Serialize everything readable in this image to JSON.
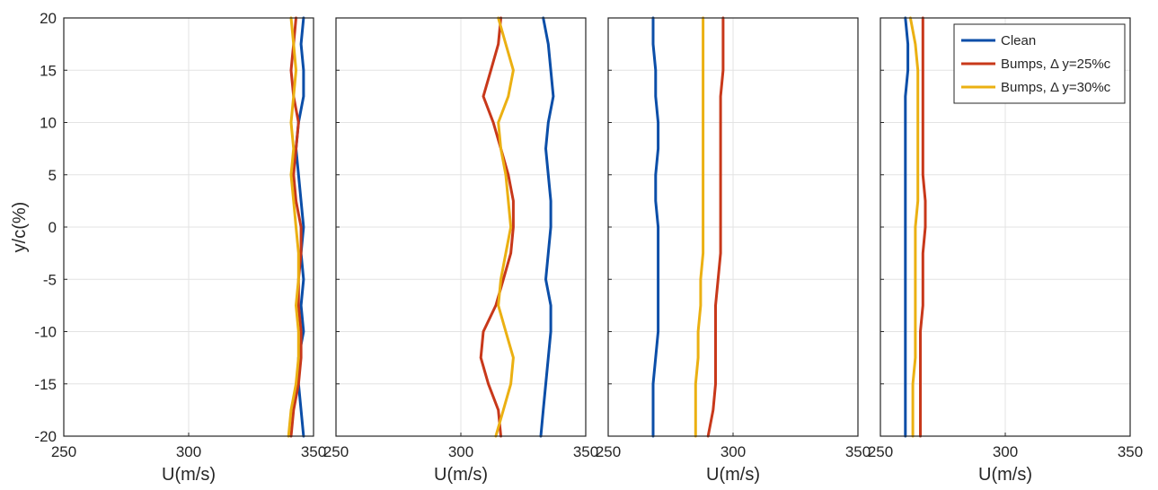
{
  "colors": {
    "clean": "#0b4ea8",
    "bumps25": "#c8381a",
    "bumps30": "#ebb012"
  },
  "chart_data": [
    {
      "type": "line",
      "xlim": [
        250,
        350
      ],
      "ylim": [
        -20,
        20
      ],
      "xticks": [
        250,
        300,
        350
      ],
      "yticks": [
        -20,
        -15,
        -10,
        -5,
        0,
        5,
        10,
        15,
        20
      ],
      "xlabel": "U(m/s)",
      "ylabel": "y/c(%)",
      "grid": true,
      "show_yticklabels": true,
      "series": [
        {
          "key": "clean",
          "y": [
            20,
            17.5,
            15,
            12.5,
            10,
            7.5,
            5,
            2.5,
            0,
            -2.5,
            -5,
            -7.5,
            -10,
            -12.5,
            -15,
            -17.5,
            -20
          ],
          "x": [
            346,
            345,
            346,
            346,
            344,
            343,
            344,
            345,
            346,
            345,
            346,
            345,
            346,
            344,
            344,
            345,
            346
          ]
        },
        {
          "key": "bumps25",
          "y": [
            20,
            17.5,
            15,
            12.5,
            10,
            7.5,
            5,
            2.5,
            0,
            -2.5,
            -5,
            -7.5,
            -10,
            -12.5,
            -15,
            -17.5,
            -20
          ],
          "x": [
            343,
            342,
            341,
            342,
            344,
            343,
            342,
            343,
            345,
            345,
            344,
            344,
            345,
            345,
            344,
            342,
            341
          ]
        },
        {
          "key": "bumps30",
          "y": [
            20,
            17.5,
            15,
            12.5,
            10,
            7.5,
            5,
            2.5,
            0,
            -2.5,
            -5,
            -7.5,
            -10,
            -12.5,
            -15,
            -17.5,
            -20
          ],
          "x": [
            341,
            342,
            343,
            342,
            341,
            342,
            341,
            342,
            343,
            344,
            344,
            343,
            344,
            344,
            343,
            341,
            340
          ]
        }
      ]
    },
    {
      "type": "line",
      "xlim": [
        250,
        350
      ],
      "ylim": [
        -20,
        20
      ],
      "xticks": [
        250,
        300,
        350
      ],
      "yticks": [
        -20,
        -15,
        -10,
        -5,
        0,
        5,
        10,
        15,
        20
      ],
      "xlabel": "U(m/s)",
      "ylabel": "",
      "grid": true,
      "show_yticklabels": false,
      "series": [
        {
          "key": "clean",
          "y": [
            20,
            17.5,
            15,
            12.5,
            10,
            7.5,
            5,
            2.5,
            0,
            -2.5,
            -5,
            -7.5,
            -10,
            -12.5,
            -15,
            -17.5,
            -20
          ],
          "x": [
            333,
            335,
            336,
            337,
            335,
            334,
            335,
            336,
            336,
            335,
            334,
            336,
            336,
            335,
            334,
            333,
            332
          ]
        },
        {
          "key": "bumps25",
          "y": [
            20,
            17.5,
            15,
            12.5,
            10,
            7.5,
            5,
            2.5,
            0,
            -2.5,
            -5,
            -7.5,
            -10,
            -12.5,
            -15,
            -17.5,
            -20
          ],
          "x": [
            316,
            315,
            312,
            309,
            313,
            316,
            319,
            321,
            321,
            320,
            317,
            314,
            309,
            308,
            311,
            315,
            316
          ]
        },
        {
          "key": "bumps30",
          "y": [
            20,
            17.5,
            15,
            12.5,
            10,
            7.5,
            5,
            2.5,
            0,
            -2.5,
            -5,
            -7.5,
            -10,
            -12.5,
            -15,
            -17.5,
            -20
          ],
          "x": [
            315,
            318,
            321,
            319,
            315,
            316,
            318,
            319,
            320,
            318,
            316,
            315,
            318,
            321,
            320,
            317,
            314
          ]
        }
      ]
    },
    {
      "type": "line",
      "xlim": [
        250,
        350
      ],
      "ylim": [
        -20,
        20
      ],
      "xticks": [
        250,
        300,
        350
      ],
      "yticks": [
        -20,
        -15,
        -10,
        -5,
        0,
        5,
        10,
        15,
        20
      ],
      "xlabel": "U(m/s)",
      "ylabel": "",
      "grid": true,
      "show_yticklabels": false,
      "series": [
        {
          "key": "clean",
          "y": [
            20,
            17.5,
            15,
            12.5,
            10,
            7.5,
            5,
            2.5,
            0,
            -2.5,
            -5,
            -7.5,
            -10,
            -12.5,
            -15,
            -17.5,
            -20
          ],
          "x": [
            268,
            268,
            269,
            269,
            270,
            270,
            269,
            269,
            270,
            270,
            270,
            270,
            270,
            269,
            268,
            268,
            268
          ]
        },
        {
          "key": "bumps25",
          "y": [
            20,
            17.5,
            15,
            12.5,
            10,
            7.5,
            5,
            2.5,
            0,
            -2.5,
            -5,
            -7.5,
            -10,
            -12.5,
            -15,
            -17.5,
            -20
          ],
          "x": [
            296,
            296,
            296,
            295,
            295,
            295,
            295,
            295,
            295,
            295,
            294,
            293,
            293,
            293,
            293,
            292,
            290
          ]
        },
        {
          "key": "bumps30",
          "y": [
            20,
            17.5,
            15,
            12.5,
            10,
            7.5,
            5,
            2.5,
            0,
            -2.5,
            -5,
            -7.5,
            -10,
            -12.5,
            -15,
            -17.5,
            -20
          ],
          "x": [
            288,
            288,
            288,
            288,
            288,
            288,
            288,
            288,
            288,
            288,
            287,
            287,
            286,
            286,
            285,
            285,
            285
          ]
        }
      ]
    },
    {
      "type": "line",
      "xlim": [
        250,
        350
      ],
      "ylim": [
        -20,
        20
      ],
      "xticks": [
        250,
        300,
        350
      ],
      "yticks": [
        -20,
        -15,
        -10,
        -5,
        0,
        5,
        10,
        15,
        20
      ],
      "xlabel": "U(m/s)",
      "ylabel": "",
      "grid": true,
      "show_yticklabels": false,
      "legend_position": "top-right",
      "legend": [
        {
          "key": "clean",
          "label": "Clean"
        },
        {
          "key": "bumps25",
          "label": "Bumps, Δ y=25%c"
        },
        {
          "key": "bumps30",
          "label": "Bumps, Δ y=30%c"
        }
      ],
      "series": [
        {
          "key": "clean",
          "name": "Clean",
          "y": [
            20,
            17.5,
            15,
            12.5,
            10,
            7.5,
            5,
            2.5,
            0,
            -2.5,
            -5,
            -7.5,
            -10,
            -12.5,
            -15,
            -17.5,
            -20
          ],
          "x": [
            260,
            261,
            261,
            260,
            260,
            260,
            260,
            260,
            260,
            260,
            260,
            260,
            260,
            260,
            260,
            260,
            260
          ]
        },
        {
          "key": "bumps25",
          "name": "Bumps, Δ y=25%c",
          "y": [
            20,
            17.5,
            15,
            12.5,
            10,
            7.5,
            5,
            2.5,
            0,
            -2.5,
            -5,
            -7.5,
            -10,
            -12.5,
            -15,
            -17.5,
            -20
          ],
          "x": [
            267,
            267,
            267,
            267,
            267,
            267,
            267,
            268,
            268,
            267,
            267,
            267,
            266,
            266,
            266,
            266,
            266
          ]
        },
        {
          "key": "bumps30",
          "name": "Bumps, Δ y=30%c",
          "y": [
            20,
            17.5,
            15,
            12.5,
            10,
            7.5,
            5,
            2.5,
            0,
            -2.5,
            -5,
            -7.5,
            -10,
            -12.5,
            -15,
            -17.5,
            -20
          ],
          "x": [
            262,
            264,
            265,
            265,
            265,
            265,
            265,
            265,
            264,
            264,
            264,
            264,
            264,
            264,
            263,
            263,
            263
          ]
        }
      ]
    }
  ]
}
